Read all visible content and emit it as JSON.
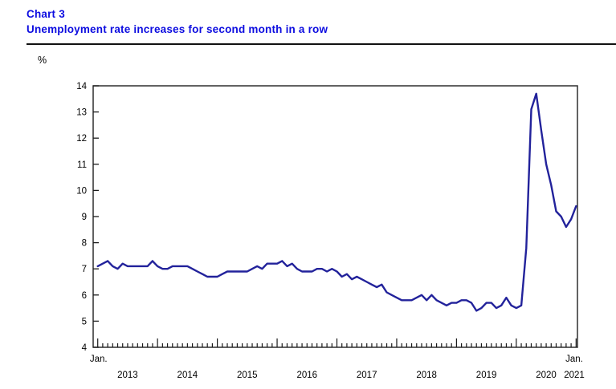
{
  "header": {
    "chart_label": "Chart 3",
    "title": "Unemployment rate increases for second month in a row",
    "title_color": "#0d0de0",
    "rule_color": "#111111"
  },
  "chart_data": {
    "type": "line",
    "title": "Unemployment rate increases for second month in a row",
    "ylabel": "%",
    "xlabel": "",
    "ylim": [
      4,
      14
    ],
    "y_tick_labels": [
      "4",
      "5",
      "6",
      "7",
      "8",
      "9",
      "10",
      "11",
      "12",
      "13",
      "14"
    ],
    "x_start_label": "Jan.",
    "x_end_label": "Jan.",
    "year_labels": [
      "2013",
      "2014",
      "2015",
      "2016",
      "2017",
      "2018",
      "2019",
      "2020",
      "2021"
    ],
    "grid": false,
    "legend": false,
    "frame_color": "#2e2e2e",
    "tick_color": "#1a1a1a",
    "label_color": "#000000",
    "series": [
      {
        "name": "Unemployment rate (%)",
        "color": "#22229b",
        "start": "Jan 2013",
        "end": "Jan 2021",
        "frequency": "monthly",
        "values": [
          7.1,
          7.2,
          7.3,
          7.1,
          7.0,
          7.2,
          7.1,
          7.1,
          7.1,
          7.1,
          7.1,
          7.3,
          7.1,
          7.0,
          7.0,
          7.1,
          7.1,
          7.1,
          7.1,
          7.0,
          6.9,
          6.8,
          6.7,
          6.7,
          6.7,
          6.8,
          6.9,
          6.9,
          6.9,
          6.9,
          6.9,
          7.0,
          7.1,
          7.0,
          7.2,
          7.2,
          7.2,
          7.3,
          7.1,
          7.2,
          7.0,
          6.9,
          6.9,
          6.9,
          7.0,
          7.0,
          6.9,
          7.0,
          6.9,
          6.7,
          6.8,
          6.6,
          6.7,
          6.6,
          6.5,
          6.4,
          6.3,
          6.4,
          6.1,
          6.0,
          5.9,
          5.8,
          5.8,
          5.8,
          5.9,
          6.0,
          5.8,
          6.0,
          5.8,
          5.7,
          5.6,
          5.7,
          5.7,
          5.8,
          5.8,
          5.7,
          5.4,
          5.5,
          5.7,
          5.7,
          5.5,
          5.6,
          5.9,
          5.6,
          5.5,
          5.6,
          7.8,
          13.1,
          13.7,
          12.3,
          11.0,
          10.2,
          9.2,
          9.0,
          8.6,
          8.9,
          9.4
        ]
      }
    ]
  }
}
